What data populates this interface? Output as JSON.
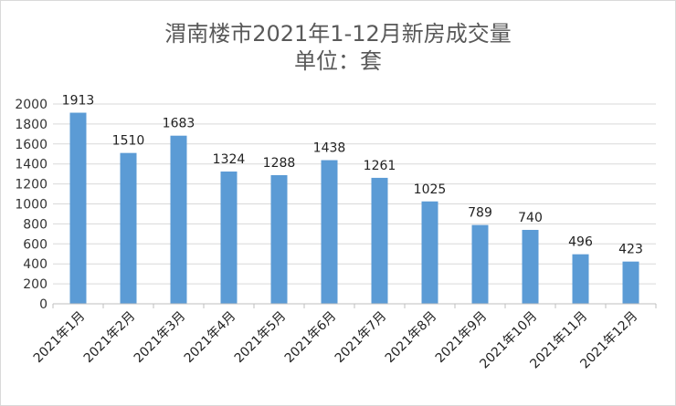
{
  "chart_data": {
    "type": "bar",
    "title": "渭南楼市2021年1-12月新房成交量",
    "subtitle": "单位：套",
    "categories": [
      "2021年1月",
      "2021年2月",
      "2021年3月",
      "2021年4月",
      "2021年5月",
      "2021年6月",
      "2021年7月",
      "2021年8月",
      "2021年9月",
      "2021年10月",
      "2021年11月",
      "2021年12月"
    ],
    "values": [
      1913,
      1510,
      1683,
      1324,
      1288,
      1438,
      1261,
      1025,
      789,
      740,
      496,
      423
    ],
    "ylim": [
      0,
      2000
    ],
    "yticks": [
      0,
      200,
      400,
      600,
      800,
      1000,
      1200,
      1400,
      1600,
      1800,
      2000
    ],
    "grid": true,
    "legend": "none",
    "bar_color": "#5b9bd5",
    "grid_color": "#d9d9d9"
  }
}
